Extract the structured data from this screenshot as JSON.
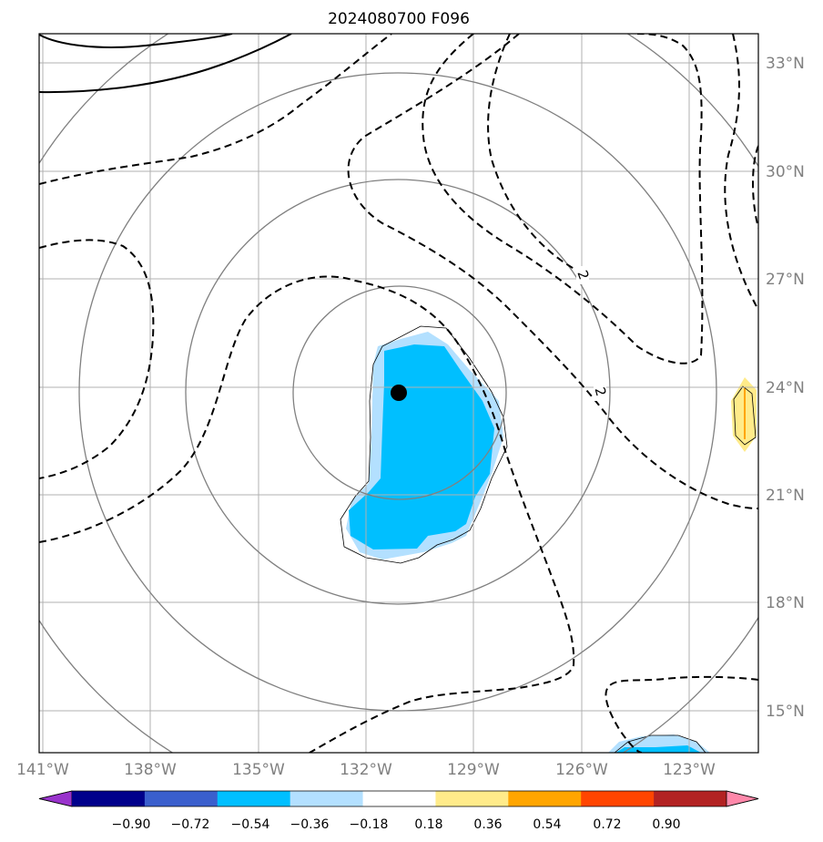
{
  "title": "2024080700 F096",
  "chart_data": {
    "type": "map-contour",
    "title": "2024080700 F096",
    "projection": "lon/lat map with great-circle range rings",
    "lon_range": [
      -141,
      -120.5
    ],
    "lat_range": [
      14,
      34
    ],
    "lon_ticks": [
      {
        "value": -141,
        "label": "141°W"
      },
      {
        "value": -138,
        "label": "138°W"
      },
      {
        "value": -135,
        "label": "135°W"
      },
      {
        "value": -132,
        "label": "132°W"
      },
      {
        "value": -129,
        "label": "129°W"
      },
      {
        "value": -126,
        "label": "126°W"
      },
      {
        "value": -123,
        "label": "123°W"
      }
    ],
    "lat_ticks": [
      {
        "value": 33,
        "label": "33°N"
      },
      {
        "value": 30,
        "label": "30°N"
      },
      {
        "value": 27,
        "label": "27°N"
      },
      {
        "value": 24,
        "label": "24°N"
      },
      {
        "value": 21,
        "label": "21°N"
      },
      {
        "value": 18,
        "label": "18°N"
      },
      {
        "value": 15,
        "label": "15°N"
      }
    ],
    "grid": true,
    "center_marker": {
      "lon": -131.1,
      "lat": 23.8
    },
    "range_rings_center": {
      "lon": -131,
      "lat": 24
    },
    "contour_labels": [
      {
        "text": "2",
        "lon": -125.05,
        "lat": 27.1
      },
      {
        "text": "2",
        "lon": -124.6,
        "lat": 23.9
      }
    ],
    "colorbar": {
      "ticks": [
        "−0.90",
        "−0.72",
        "−0.54",
        "−0.36",
        "−0.18",
        "0.18",
        "0.36",
        "0.54",
        "0.72",
        "0.90"
      ],
      "colors": [
        "#9933cc",
        "#00008b",
        "#3a5fcd",
        "#00bfff",
        "#b3e0ff",
        "#ffffff",
        "#ffeb8a",
        "#ffa500",
        "#ff4500",
        "#b22222",
        "#ff88aa"
      ],
      "extend": "both"
    }
  }
}
